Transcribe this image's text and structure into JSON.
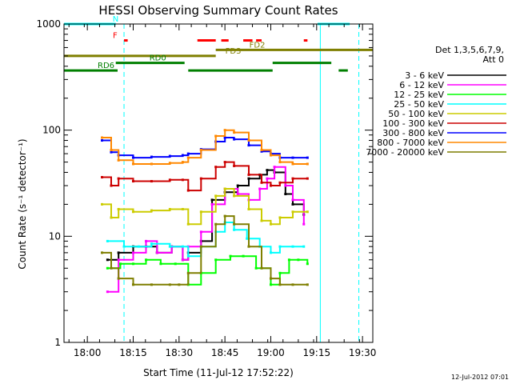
{
  "chart_data": {
    "type": "line",
    "title": "HESSI Observing Summary Count Rates",
    "xlabel": "Start Time (11-Jul-12 17:52:22)",
    "ylabel": "Count Rate (s⁻¹ detector⁻¹)",
    "yscale": "log",
    "ylim": [
      1,
      1000
    ],
    "xlim": [
      17.8728,
      19.5561
    ],
    "x_ticks": [
      {
        "label": "18:00",
        "value": 18.0
      },
      {
        "label": "18:15",
        "value": 18.25
      },
      {
        "label": "18:30",
        "value": 18.5
      },
      {
        "label": "18:45",
        "value": 18.75
      },
      {
        "label": "19:00",
        "value": 19.0
      },
      {
        "label": "19:15",
        "value": 19.25
      },
      {
        "label": "19:30",
        "value": 19.5
      }
    ],
    "y_ticks": [
      {
        "label": "1",
        "value": 1
      },
      {
        "label": "10",
        "value": 10
      },
      {
        "label": "100",
        "value": 100
      },
      {
        "label": "1000",
        "value": 1000
      }
    ],
    "detectors": "Det 1,3,5,6,7,9,",
    "attenuator": "Att 0",
    "timestamp": "12-Jul-2012 07:01",
    "legend_position": "right",
    "series": [
      {
        "name": "3 - 6 keV",
        "color": "#000000",
        "x": [
          18.11,
          18.17,
          18.25,
          18.32,
          18.38,
          18.46,
          18.52,
          18.55,
          18.62,
          18.68,
          18.75,
          18.82,
          18.88,
          18.94,
          18.98,
          19.02,
          19.08,
          19.12,
          19.18
        ],
        "y": [
          6,
          7,
          8,
          8,
          7,
          8,
          6,
          7,
          9,
          22,
          26,
          30,
          35,
          38,
          42,
          40,
          25,
          20,
          16
        ]
      },
      {
        "name": "6 - 12 keV",
        "color": "#ff00ff",
        "x": [
          18.11,
          18.17,
          18.25,
          18.32,
          18.38,
          18.46,
          18.52,
          18.55,
          18.62,
          18.68,
          18.75,
          18.82,
          18.88,
          18.94,
          18.98,
          19.02,
          19.08,
          19.12,
          19.18
        ],
        "y": [
          3,
          6,
          7,
          9,
          7,
          8,
          6,
          8,
          11,
          20,
          28,
          25,
          22,
          28,
          35,
          45,
          30,
          22,
          13
        ]
      },
      {
        "name": "12 - 25 keV",
        "color": "#00ff00",
        "x": [
          18.11,
          18.18,
          18.25,
          18.32,
          18.4,
          18.48,
          18.55,
          18.62,
          18.7,
          18.78,
          18.85,
          18.92,
          19.0,
          19.05,
          19.1,
          19.15,
          19.2
        ],
        "y": [
          5,
          5.5,
          5.5,
          6,
          5.5,
          5.5,
          3.5,
          4.5,
          6,
          6.5,
          6.5,
          5,
          3.5,
          4.5,
          6,
          6,
          5.5
        ]
      },
      {
        "name": "25 - 50 keV",
        "color": "#00ffff",
        "x": [
          18.11,
          18.2,
          18.28,
          18.35,
          18.45,
          18.52,
          18.55,
          18.62,
          18.7,
          18.75,
          18.8,
          18.87,
          18.94,
          19.0,
          19.05,
          19.12,
          19.18
        ],
        "y": [
          9,
          8,
          8,
          8.5,
          8,
          8,
          6.5,
          8,
          11,
          13.5,
          11.5,
          9.5,
          8,
          7,
          8,
          8,
          8
        ]
      },
      {
        "name": "50 - 100 keV",
        "color": "#cccc00",
        "x": [
          18.08,
          18.13,
          18.17,
          18.25,
          18.35,
          18.45,
          18.52,
          18.55,
          18.62,
          18.7,
          18.75,
          18.8,
          18.88,
          18.95,
          19.0,
          19.05,
          19.12,
          19.2
        ],
        "y": [
          20,
          15,
          18,
          17,
          17.5,
          18,
          18,
          13,
          17,
          24,
          28,
          24,
          18,
          14,
          13,
          15,
          17,
          17
        ]
      },
      {
        "name": "100 - 300 keV",
        "color": "#cc0000",
        "x": [
          18.08,
          18.13,
          18.17,
          18.25,
          18.35,
          18.45,
          18.52,
          18.55,
          18.62,
          18.7,
          18.75,
          18.8,
          18.88,
          18.95,
          19.0,
          19.05,
          19.12,
          19.2
        ],
        "y": [
          36,
          30,
          35,
          33,
          33,
          34,
          34,
          27,
          35,
          45,
          50,
          46,
          38,
          32,
          30,
          32,
          35,
          35
        ]
      },
      {
        "name": "300 - 800 keV",
        "color": "#0000ff",
        "x": [
          18.08,
          18.13,
          18.17,
          18.25,
          18.35,
          18.45,
          18.52,
          18.55,
          18.62,
          18.7,
          18.75,
          18.8,
          18.88,
          18.95,
          19.0,
          19.05,
          19.12,
          19.2
        ],
        "y": [
          80,
          62,
          58,
          55,
          56,
          57,
          58,
          60,
          66,
          78,
          85,
          82,
          72,
          63,
          60,
          55,
          55,
          55
        ]
      },
      {
        "name": "800 - 7000 keV",
        "color": "#ff8800",
        "x": [
          18.08,
          18.13,
          18.17,
          18.25,
          18.35,
          18.45,
          18.52,
          18.55,
          18.62,
          18.7,
          18.75,
          18.8,
          18.88,
          18.95,
          19.0,
          19.05,
          19.12,
          19.2
        ],
        "y": [
          85,
          65,
          52,
          48,
          48,
          49,
          50,
          55,
          65,
          88,
          100,
          95,
          80,
          65,
          58,
          50,
          48,
          48
        ]
      },
      {
        "name": "7000 - 20000 keV",
        "color": "#7f7f00",
        "x": [
          18.08,
          18.13,
          18.17,
          18.25,
          18.35,
          18.45,
          18.5,
          18.55,
          18.62,
          18.7,
          18.75,
          18.8,
          18.88,
          18.95,
          19.0,
          19.05,
          19.12,
          19.2
        ],
        "y": [
          7,
          5,
          4,
          3.5,
          3.5,
          3.5,
          3.5,
          4.5,
          8,
          13,
          15.5,
          13,
          8,
          5,
          4,
          3.5,
          3.5,
          3.5
        ]
      }
    ],
    "flags": [
      {
        "label": "N",
        "color": "#00ffff",
        "value": 1000,
        "segments": [
          [
            17.8728,
            18.155
          ],
          [
            19.255,
            19.43
          ]
        ]
      },
      {
        "label": "F",
        "color": "#ff0000",
        "value": 700,
        "segments": [
          [
            18.2,
            18.22
          ],
          [
            18.6,
            18.7
          ],
          [
            18.73,
            18.77
          ],
          [
            18.85,
            18.9
          ],
          [
            18.92,
            18.95
          ],
          [
            19.18,
            19.2
          ]
        ]
      },
      {
        "label": "FD2",
        "color": "#7f7f00",
        "value": 570,
        "segments": [
          [
            18.7,
            19.556
          ]
        ]
      },
      {
        "label": "FD3",
        "color": "#7f7f00",
        "value": 500,
        "segments": [
          [
            17.8728,
            18.7
          ]
        ]
      },
      {
        "label": "RD0",
        "color": "#007f00",
        "value": 430,
        "segments": [
          [
            18.155,
            18.53
          ],
          [
            19.01,
            19.33
          ]
        ]
      },
      {
        "label": "RD6",
        "color": "#007f00",
        "value": 365,
        "segments": [
          [
            17.8728,
            18.165
          ],
          [
            18.55,
            19.01
          ],
          [
            19.37,
            19.42
          ]
        ]
      }
    ],
    "vlines": [
      {
        "label": "",
        "color": "#00ffff",
        "style": "dashed",
        "value": 18.2
      },
      {
        "label": "",
        "color": "#00ffff",
        "style": "solid",
        "value": 19.27
      },
      {
        "label": "",
        "color": "#00ffff",
        "style": "dashed",
        "value": 19.48
      }
    ]
  }
}
